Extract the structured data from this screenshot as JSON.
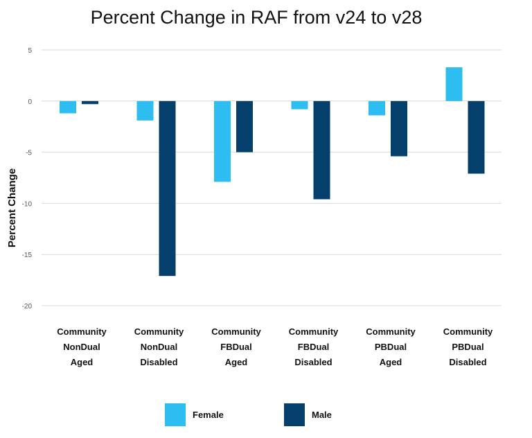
{
  "chart_data": {
    "type": "bar",
    "title": "Percent Change in RAF from v24 to v28",
    "xlabel": "",
    "ylabel": "Percent Change",
    "ylim": [
      -20,
      5
    ],
    "yticks": [
      5,
      0,
      -5,
      -10,
      -15,
      -20
    ],
    "grid": true,
    "legend_position": "bottom",
    "categories": [
      [
        "Community",
        "NonDual",
        "Aged"
      ],
      [
        "Community",
        "NonDual",
        "Disabled"
      ],
      [
        "Community",
        "FBDual",
        "Aged"
      ],
      [
        "Community",
        "FBDual",
        "Disabled"
      ],
      [
        "Community",
        "PBDual",
        "Aged"
      ],
      [
        "Community",
        "PBDual",
        "Disabled"
      ]
    ],
    "series": [
      {
        "name": "Female",
        "color": "#2dbdf0",
        "values": [
          -1.2,
          -1.9,
          -7.9,
          -0.8,
          -1.4,
          3.3
        ]
      },
      {
        "name": "Male",
        "color": "#053f6b",
        "values": [
          -0.3,
          -17.1,
          -5.0,
          -9.6,
          -5.4,
          -7.1
        ]
      }
    ]
  }
}
